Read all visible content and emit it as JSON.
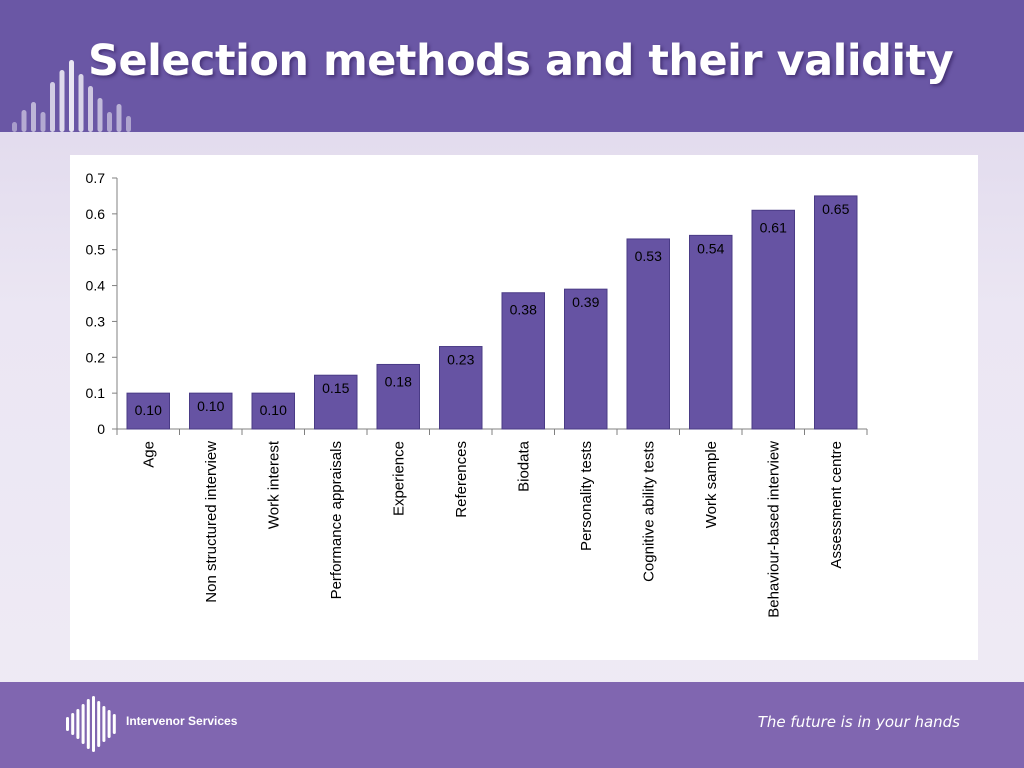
{
  "header": {
    "title": "Selection methods and their validity"
  },
  "footer": {
    "brand": "Intervenor Services",
    "tagline": "The future is in your hands"
  },
  "colors": {
    "header": "#6a57a5",
    "footer": "#8066b0",
    "bar": "#6653a3",
    "bar_stroke": "#4a3b86"
  },
  "chart_data": {
    "type": "bar",
    "title": "",
    "xlabel": "",
    "ylabel": "",
    "ylim": [
      0,
      0.7
    ],
    "yticks": [
      "0",
      "0.1",
      "0.2",
      "0.3",
      "0.4",
      "0.5",
      "0.6",
      "0.7"
    ],
    "grid": false,
    "legend": "none",
    "categories": [
      "Age",
      "Non structured interview",
      "Work interest",
      "Performance appraisals",
      "Experience",
      "References",
      "Biodata",
      "Personality tests",
      "Cognitive ability tests",
      "Work sample",
      "Behaviour-based interview",
      "Assessment centre"
    ],
    "values": [
      0.1,
      0.1,
      0.1,
      0.15,
      0.18,
      0.23,
      0.38,
      0.39,
      0.53,
      0.54,
      0.61,
      0.65
    ],
    "value_labels": [
      "0.10",
      "0.10",
      "0.10",
      "0.15",
      "0.18",
      "0.23",
      "0.38",
      "0.39",
      "0.53",
      "0.54",
      "0.61",
      "0.65"
    ]
  }
}
